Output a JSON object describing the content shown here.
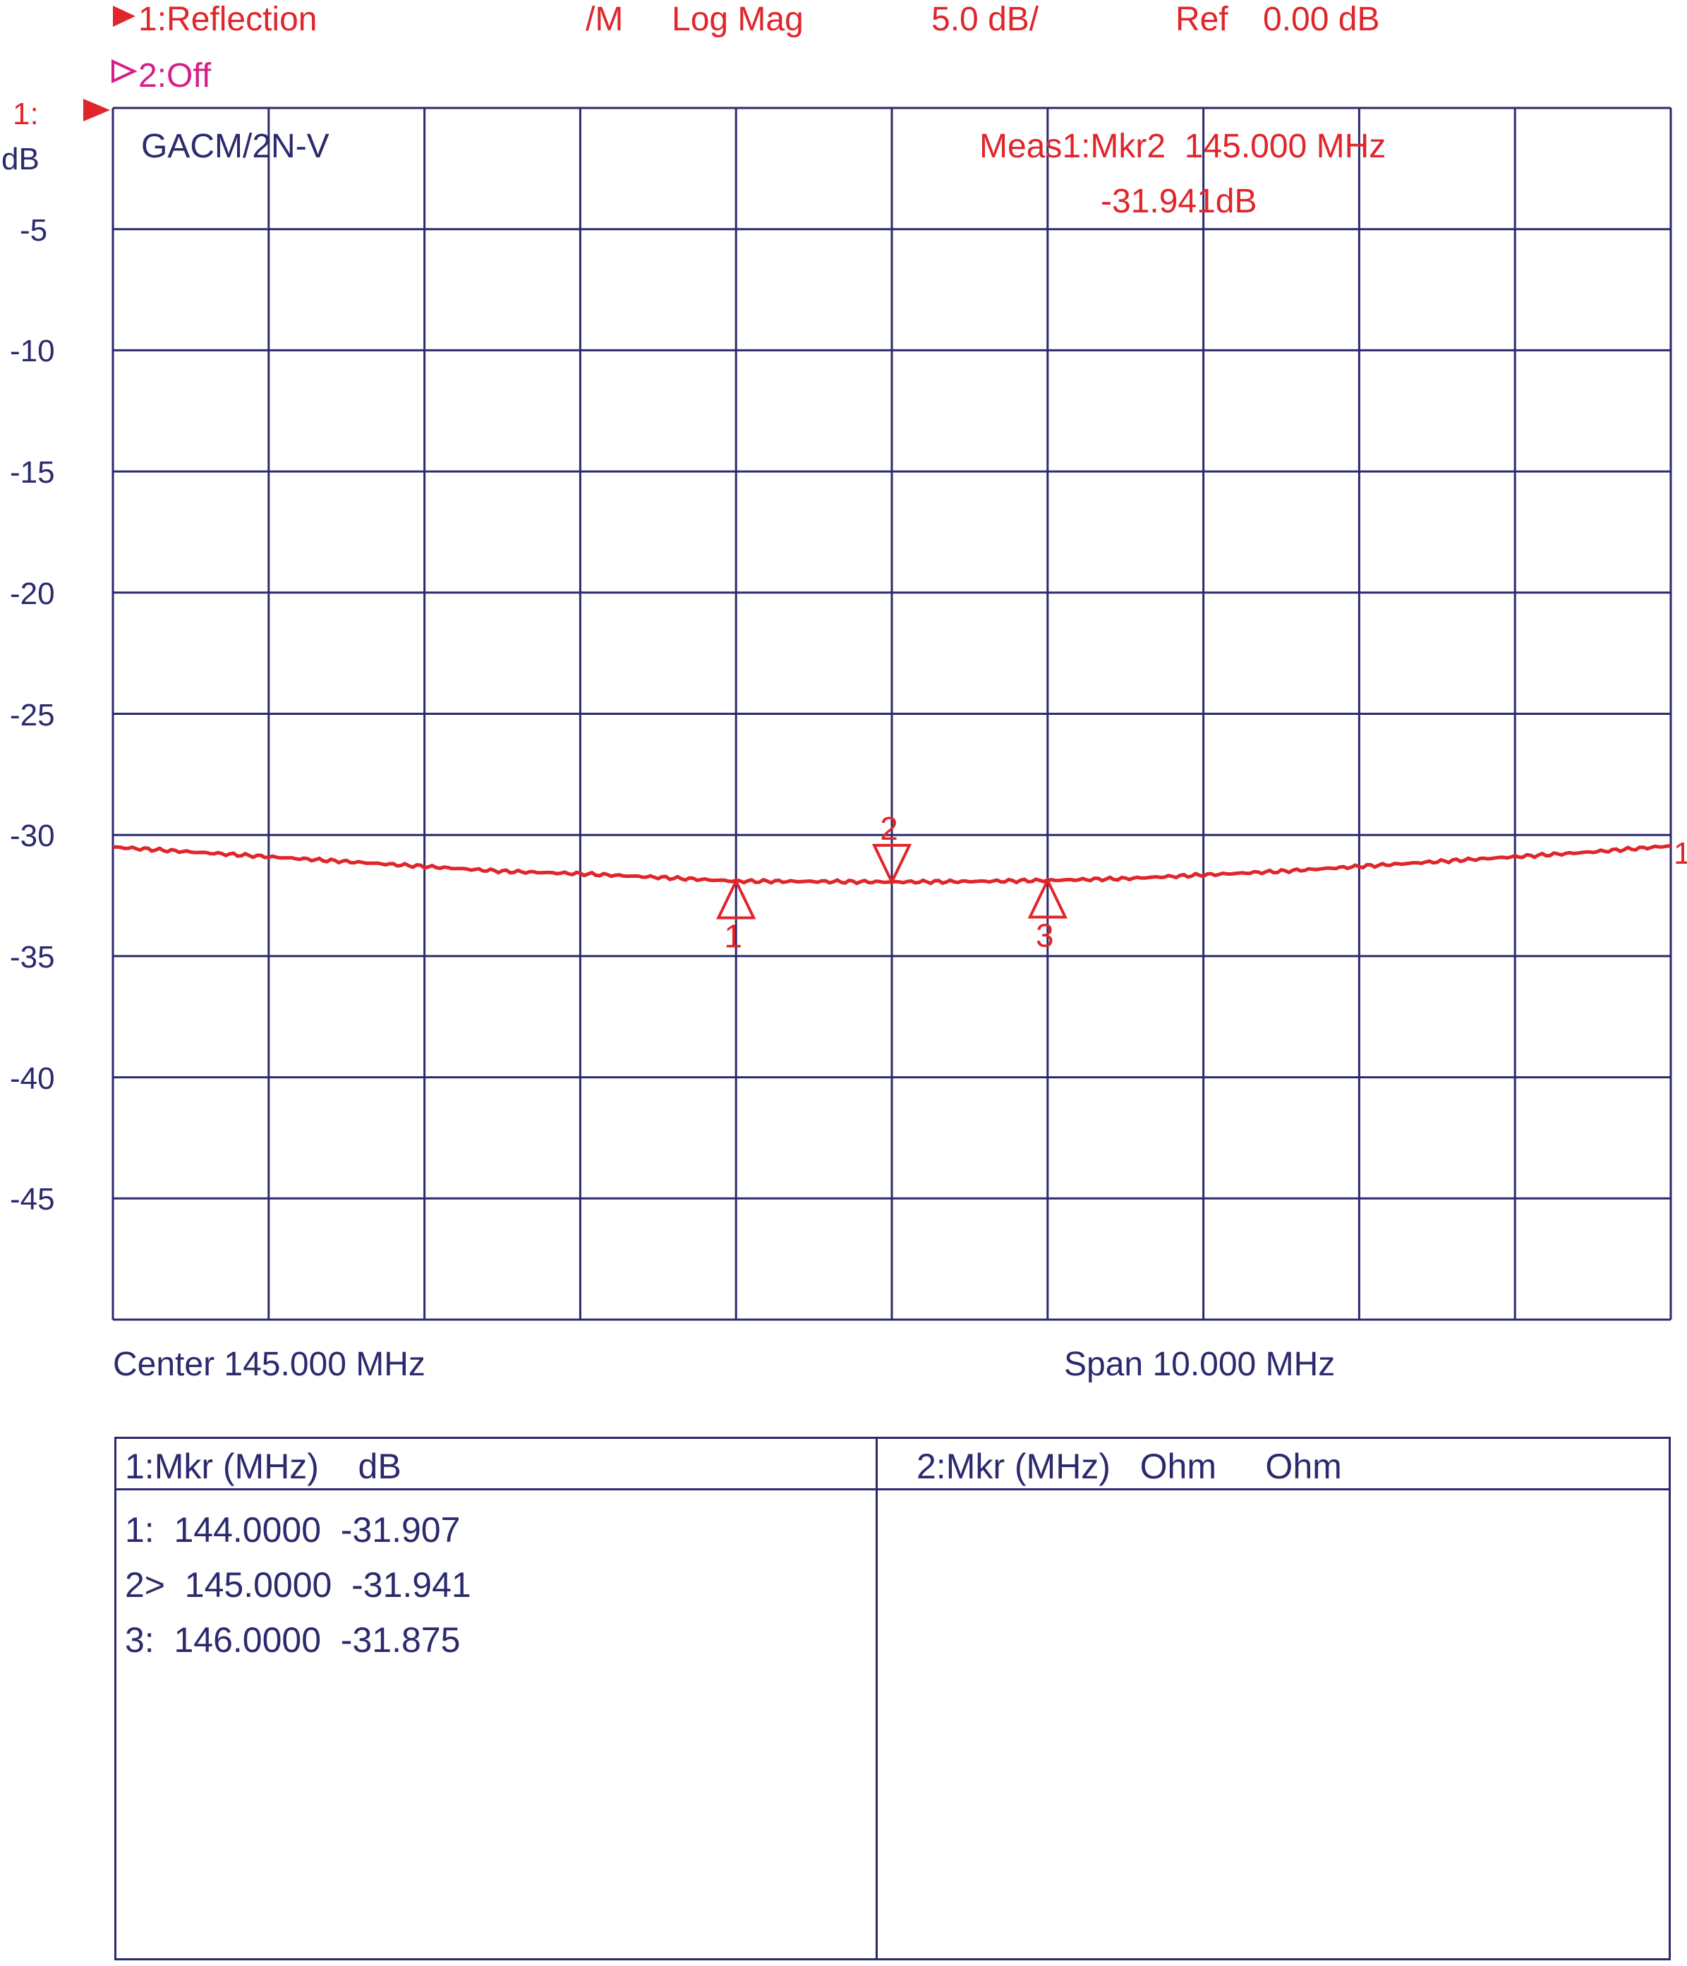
{
  "header": {
    "trace1": "1:Reflection",
    "format_prefix": "/M",
    "format": "Log Mag",
    "scale": "5.0 dB/",
    "ref_label": "Ref",
    "ref_value": "0.00 dB",
    "trace2": "2:Off"
  },
  "axis": {
    "channel_label": "1:",
    "unit": "dB",
    "yticks": [
      "-5",
      "-10",
      "-15",
      "-20",
      "-25",
      "-30",
      "-35",
      "-40",
      "-45"
    ],
    "center": "Center 145.000 MHz",
    "span": "Span 10.000 MHz"
  },
  "plot": {
    "title": "GACM/2N-V",
    "meas_line1": "Meas1:Mkr2  145.000 MHz",
    "meas_line2": "-31.941dB",
    "trace_end_label": "1"
  },
  "colors": {
    "grid": "#2b2a6e",
    "trace": "#e0252b",
    "trace2": "#d61f86"
  },
  "chart_data": {
    "type": "line",
    "title": "GACM/2N-V",
    "xlabel": "",
    "ylabel": "dB",
    "xlim": [
      140,
      150
    ],
    "ylim": [
      -50,
      0
    ],
    "grid": true,
    "series": [
      {
        "name": "1:Reflection",
        "x": [
          140,
          140.5,
          141,
          141.5,
          142,
          142.5,
          143,
          143.5,
          144,
          144.5,
          145,
          145.5,
          146,
          146.5,
          147,
          147.5,
          148,
          148.5,
          149,
          149.5,
          150
        ],
        "values": [
          -30.5,
          -30.7,
          -30.9,
          -31.1,
          -31.3,
          -31.5,
          -31.6,
          -31.75,
          -31.907,
          -31.92,
          -31.941,
          -31.92,
          -31.875,
          -31.8,
          -31.65,
          -31.5,
          -31.3,
          -31.1,
          -30.9,
          -30.7,
          -30.45
        ]
      }
    ],
    "markers": [
      {
        "id": "1",
        "x": 144.0,
        "y": -31.907,
        "dir": "up"
      },
      {
        "id": "2",
        "x": 145.0,
        "y": -31.941,
        "dir": "down"
      },
      {
        "id": "3",
        "x": 146.0,
        "y": -31.875,
        "dir": "up"
      }
    ]
  },
  "marker_table": {
    "left_header": "1:Mkr (MHz)    dB",
    "right_header": "2:Mkr (MHz)   Ohm     Ohm",
    "rows": [
      "1:  144.0000  -31.907",
      "2>  145.0000  -31.941",
      "3:  146.0000  -31.875"
    ]
  }
}
